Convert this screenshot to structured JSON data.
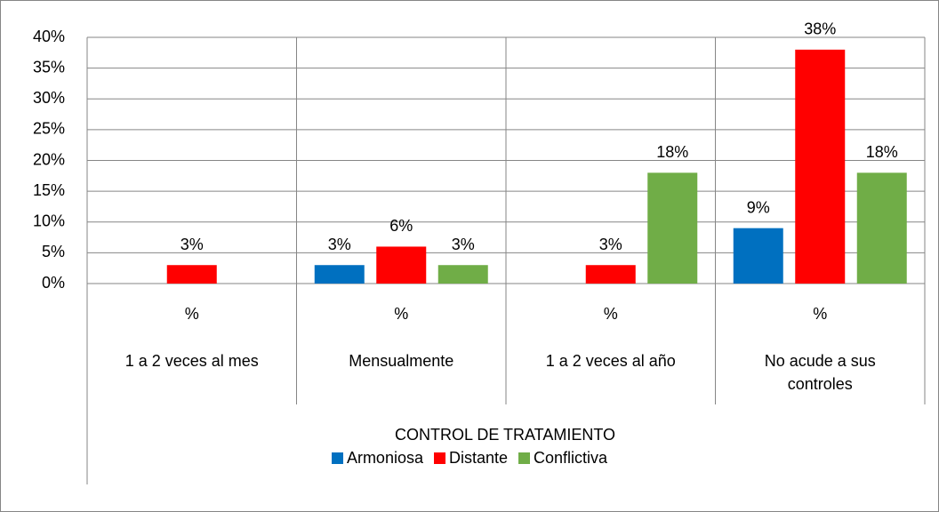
{
  "chart_data": {
    "type": "bar",
    "categories": [
      "1 a 2 veces al mes",
      "Mensualmente",
      "1 a 2 veces al año",
      "No acude a sus controles"
    ],
    "category_sublabels": [
      "%",
      "%",
      "%",
      "%"
    ],
    "axis_group_label": "CONTROL DE TRATAMIENTO",
    "series": [
      {
        "name": "Armoniosa",
        "color": "#0070c0",
        "values": [
          null,
          3,
          null,
          9
        ],
        "value_labels": [
          null,
          "3%",
          null,
          "9%"
        ]
      },
      {
        "name": "Distante",
        "color": "#ff0000",
        "values": [
          3,
          6,
          3,
          38
        ],
        "value_labels": [
          "3%",
          "6%",
          "3%",
          "38%"
        ]
      },
      {
        "name": "Conflictiva",
        "color": "#70ad47",
        "values": [
          null,
          3,
          18,
          18
        ],
        "value_labels": [
          null,
          "3%",
          "18%",
          "18%"
        ]
      }
    ],
    "ylim": [
      0,
      40
    ],
    "yticks": [
      {
        "value": 0,
        "label": "0%"
      },
      {
        "value": 5,
        "label": "5%"
      },
      {
        "value": 10,
        "label": "10%"
      },
      {
        "value": 15,
        "label": "15%"
      },
      {
        "value": 20,
        "label": "20%"
      },
      {
        "value": 25,
        "label": "25%"
      },
      {
        "value": 30,
        "label": "30%"
      },
      {
        "value": 35,
        "label": "35%"
      },
      {
        "value": 40,
        "label": "40%"
      }
    ],
    "grid": true,
    "legend": "bottom"
  }
}
